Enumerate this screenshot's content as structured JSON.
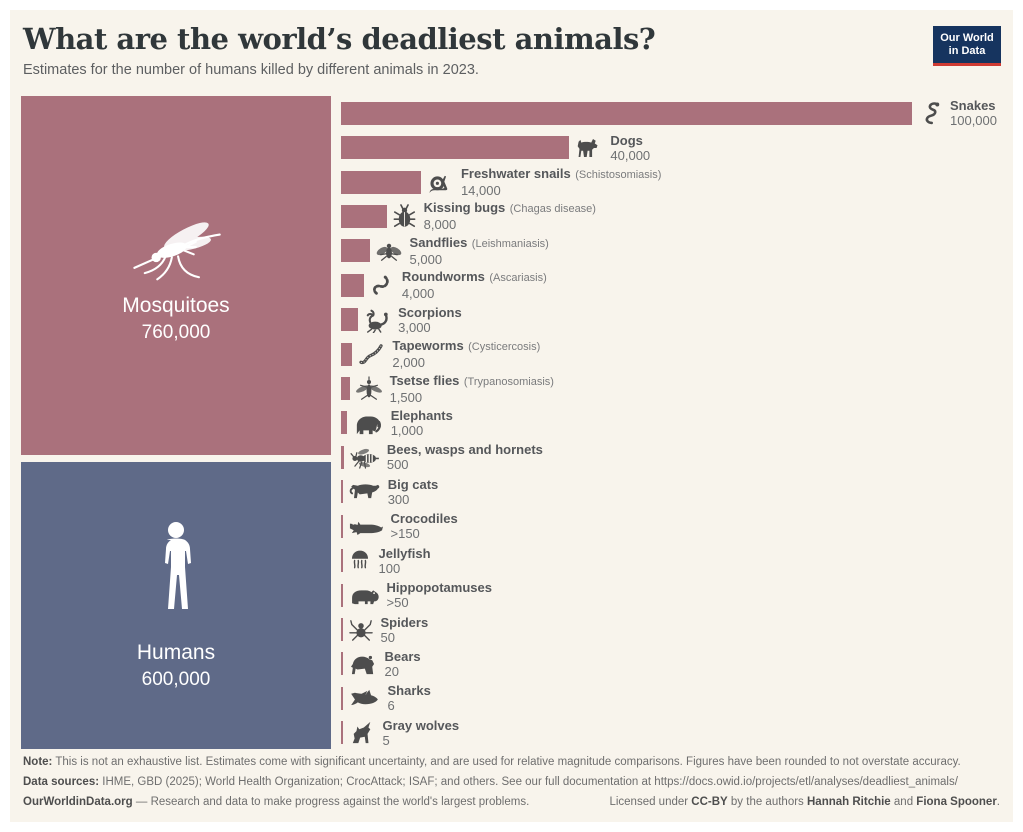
{
  "header": {
    "title": "What are the world’s deadliest animals?",
    "subtitle": "Estimates for the number of humans killed by different animals in 2023.",
    "logo_line1": "Our World",
    "logo_line2": "in Data"
  },
  "colors": {
    "background": "#f8f4ec",
    "rose": "#aa717c",
    "blue": "#5f6a88",
    "icon_gray": "#4d4d4d",
    "logo_navy": "#16345f",
    "logo_red": "#cf3b33"
  },
  "chart_data": {
    "type": "bar",
    "orientation": "horizontal",
    "title": "What are the world’s deadliest animals?",
    "subtitle": "Estimates for the number of humans killed by different animals in 2023.",
    "unit": "humans killed per year",
    "xlim": [
      0,
      100000
    ],
    "grid": false,
    "legend": "none",
    "blocks": [
      {
        "label": "Mosquitoes",
        "value": 760000,
        "display": "760,000",
        "icon": "mosquito-icon",
        "color": "#aa717c"
      },
      {
        "label": "Humans",
        "value": 600000,
        "display": "600,000",
        "icon": "human-icon",
        "color": "#5f6a88"
      }
    ],
    "bars": [
      {
        "name": "Snakes",
        "qualifier": "",
        "value": 100000,
        "display": "100,000",
        "icon": "snake-icon"
      },
      {
        "name": "Dogs",
        "qualifier": "",
        "value": 40000,
        "display": "40,000",
        "icon": "dog-icon"
      },
      {
        "name": "Freshwater snails",
        "qualifier": "(Schistosomiasis)",
        "value": 14000,
        "display": "14,000",
        "icon": "snail-icon"
      },
      {
        "name": "Kissing bugs",
        "qualifier": "(Chagas disease)",
        "value": 8000,
        "display": "8,000",
        "icon": "kissing-bug-icon"
      },
      {
        "name": "Sandflies",
        "qualifier": "(Leishmaniasis)",
        "value": 5000,
        "display": "5,000",
        "icon": "sandfly-icon"
      },
      {
        "name": "Roundworms",
        "qualifier": "(Ascariasis)",
        "value": 4000,
        "display": "4,000",
        "icon": "roundworm-icon"
      },
      {
        "name": "Scorpions",
        "qualifier": "",
        "value": 3000,
        "display": "3,000",
        "icon": "scorpion-icon"
      },
      {
        "name": "Tapeworms",
        "qualifier": "(Cysticercosis)",
        "value": 2000,
        "display": "2,000",
        "icon": "tapeworm-icon"
      },
      {
        "name": "Tsetse flies",
        "qualifier": "(Trypanosomiasis)",
        "value": 1500,
        "display": "1,500",
        "icon": "tsetse-fly-icon"
      },
      {
        "name": "Elephants",
        "qualifier": "",
        "value": 1000,
        "display": "1,000",
        "icon": "elephant-icon"
      },
      {
        "name": "Bees, wasps and hornets",
        "qualifier": "",
        "value": 500,
        "display": "500",
        "icon": "wasp-icon"
      },
      {
        "name": "Big cats",
        "qualifier": "",
        "value": 300,
        "display": "300",
        "icon": "big-cat-icon"
      },
      {
        "name": "Crocodiles",
        "qualifier": "",
        "value": 150,
        "display": ">150",
        "icon": "crocodile-icon"
      },
      {
        "name": "Jellyfish",
        "qualifier": "",
        "value": 100,
        "display": "100",
        "icon": "jellyfish-icon"
      },
      {
        "name": "Hippopotamuses",
        "qualifier": "",
        "value": 50,
        "display": ">50",
        "icon": "hippo-icon"
      },
      {
        "name": "Spiders",
        "qualifier": "",
        "value": 50,
        "display": "50",
        "icon": "spider-icon"
      },
      {
        "name": "Bears",
        "qualifier": "",
        "value": 20,
        "display": "20",
        "icon": "bear-icon"
      },
      {
        "name": "Sharks",
        "qualifier": "",
        "value": 6,
        "display": "6",
        "icon": "shark-icon"
      },
      {
        "name": "Gray wolves",
        "qualifier": "",
        "value": 5,
        "display": "5",
        "icon": "gray-wolf-icon"
      }
    ]
  },
  "footer": {
    "note_label": "Note:",
    "note_text": " This is not an exhaustive list. Estimates come with significant uncertainty, and are used for relative magnitude comparisons. Figures have been rounded to not overstate accuracy.",
    "sources_label": "Data sources:",
    "sources_text": " IHME, GBD (2025); World Health Organization; CrocAttack; ISAF; and others. See our full documentation at https://docs.owid.io/projects/etl/analyses/deadliest_animals/",
    "owid_label": "OurWorldinData.org",
    "owid_tagline": " — Research and data to make progress against the world's largest problems.",
    "license_pre": "Licensed under ",
    "license_cc": "CC-BY",
    "license_mid": " by the authors ",
    "author1": "Hannah Ritchie",
    "license_and": " and ",
    "author2": "Fiona Spooner",
    "license_end": "."
  }
}
